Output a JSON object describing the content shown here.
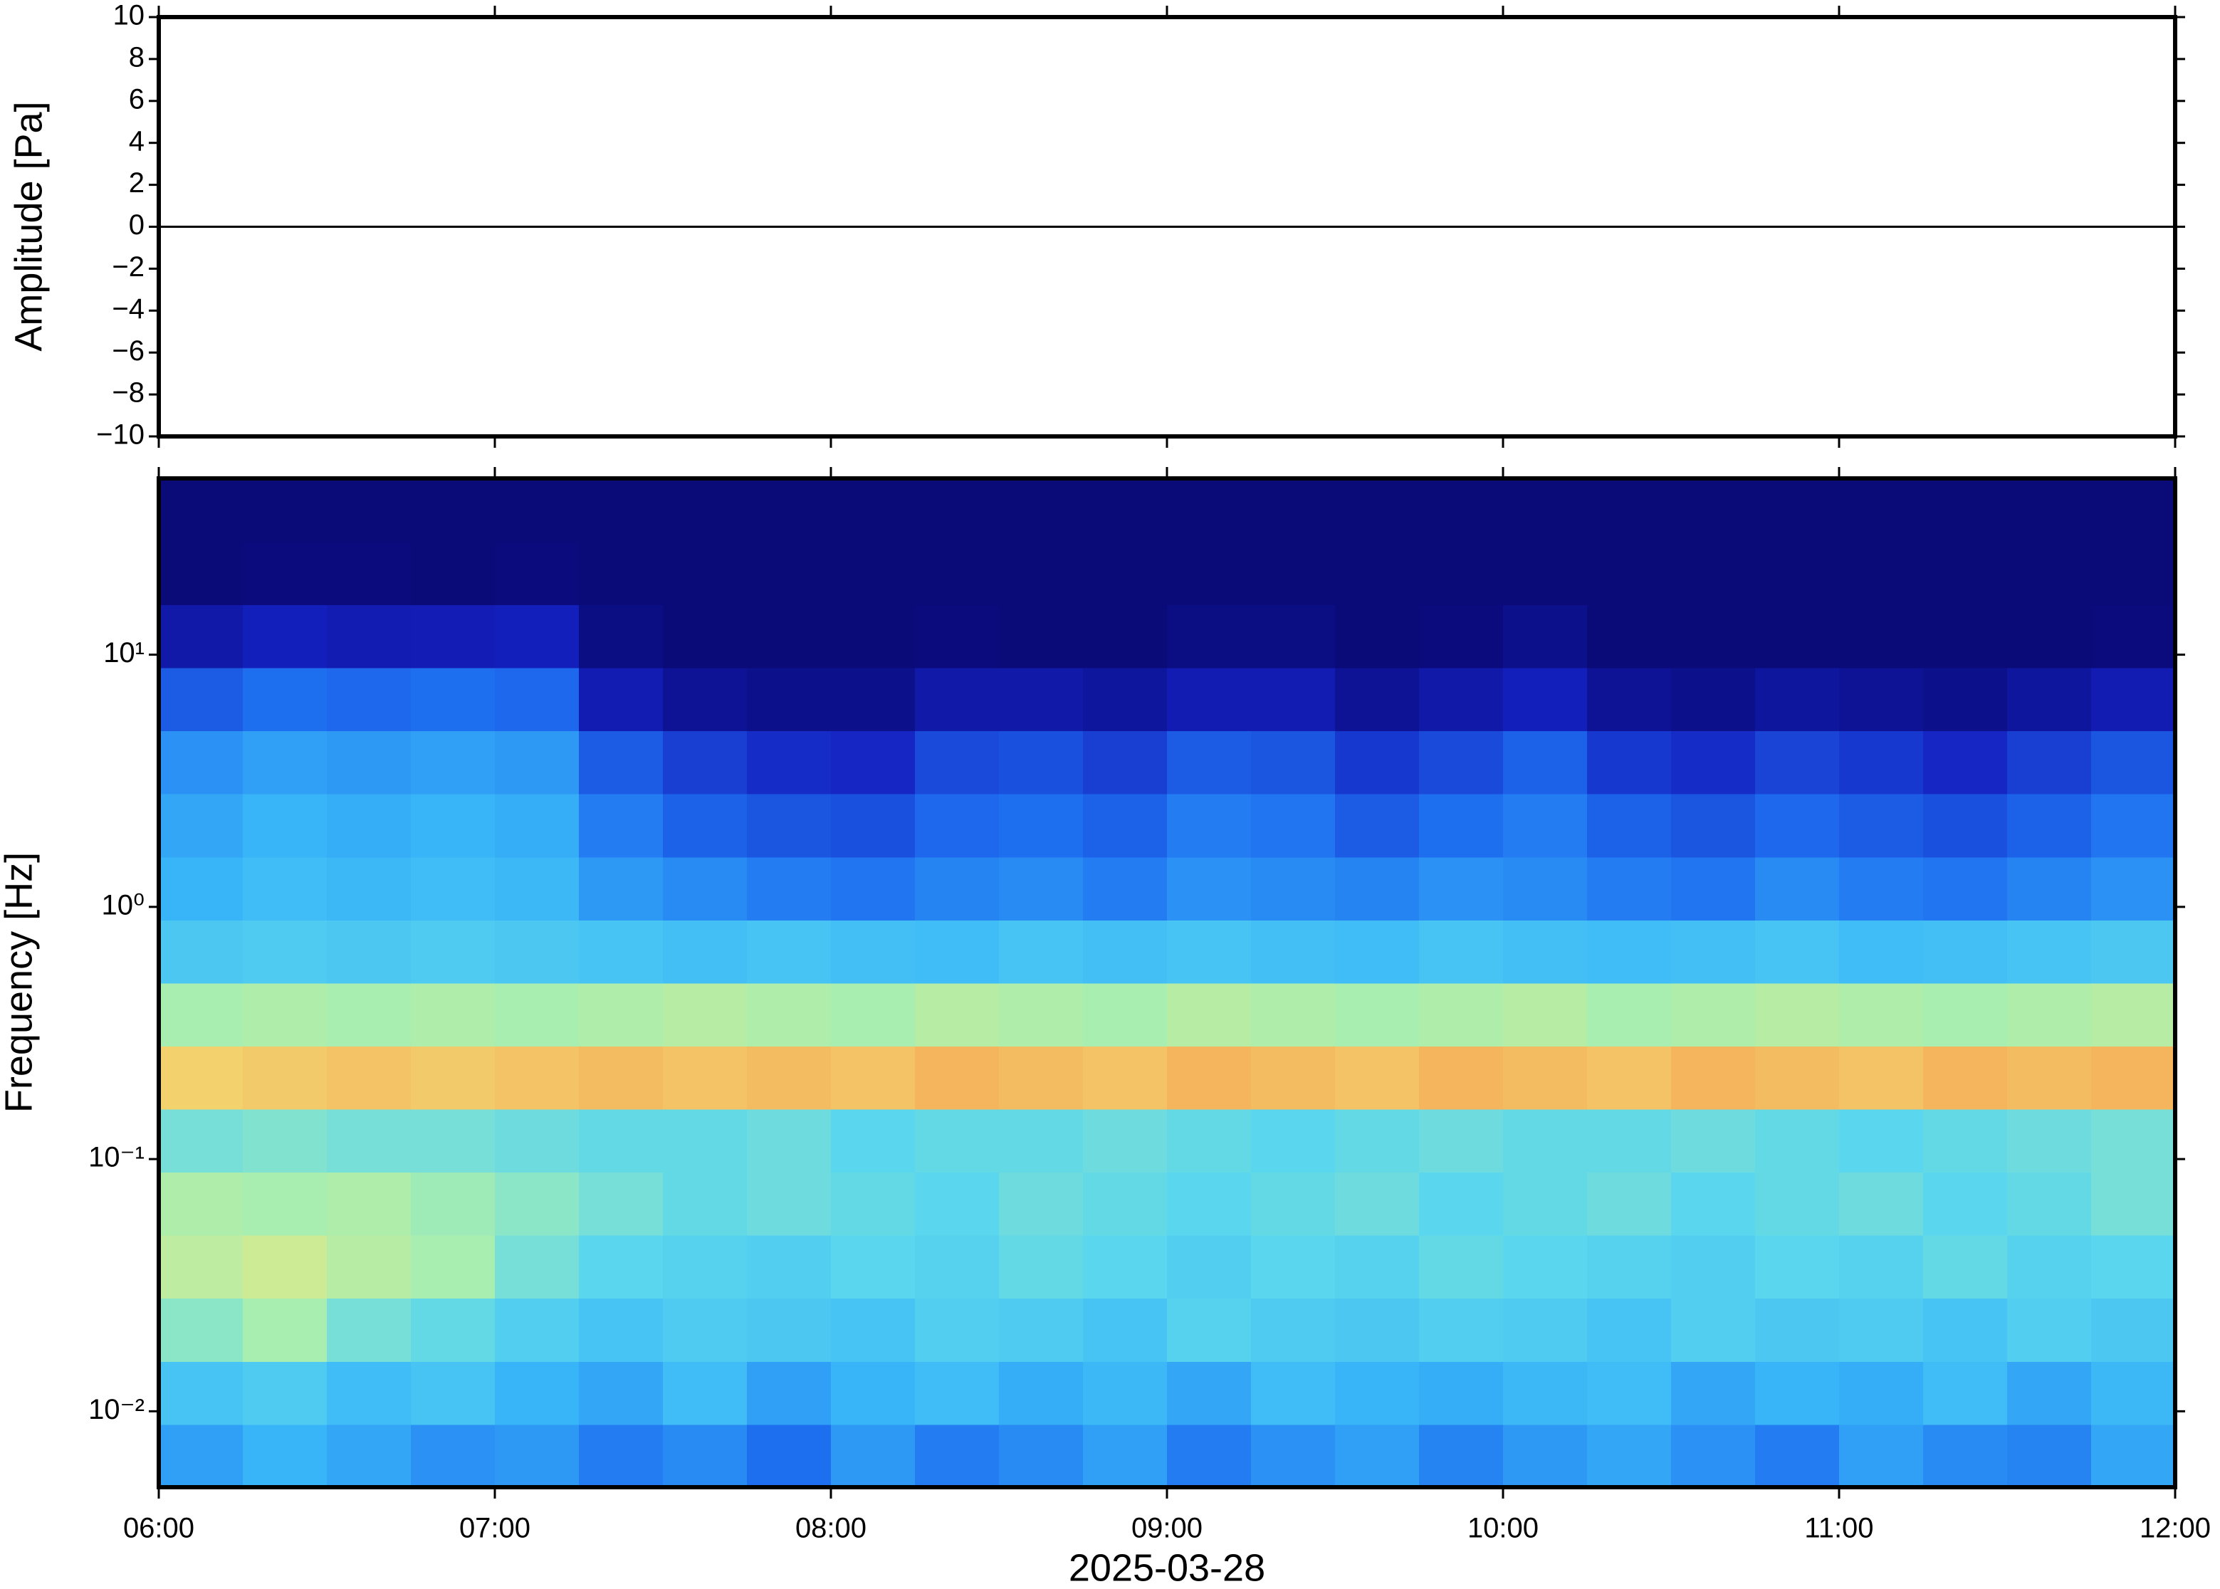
{
  "chart_data": [
    {
      "type": "line",
      "ylabel": "Amplitude [Pa]",
      "xlim": [
        6,
        12
      ],
      "ylim": [
        -10,
        10
      ],
      "yticks": [
        {
          "value": -10,
          "label": "−10"
        },
        {
          "value": -8,
          "label": "−8"
        },
        {
          "value": -6,
          "label": "−6"
        },
        {
          "value": -4,
          "label": "−4"
        },
        {
          "value": -2,
          "label": "−2"
        },
        0,
        2,
        4,
        6,
        8,
        10
      ],
      "x": [
        6,
        6.25,
        6.5,
        6.75,
        7,
        7.25,
        7.5,
        7.75,
        8,
        8.25,
        8.5,
        8.75,
        9,
        9.25,
        9.5,
        9.75,
        10,
        10.25,
        10.5,
        10.75,
        11,
        11.25,
        11.5,
        11.75,
        12
      ],
      "series": [
        {
          "color": "#000000",
          "values": [
            0,
            0,
            0,
            0,
            0,
            0,
            0,
            0,
            0,
            0,
            0,
            0,
            0,
            0,
            0,
            0,
            0,
            0,
            0,
            0,
            0,
            0,
            0,
            0,
            0
          ]
        }
      ]
    },
    {
      "type": "heatmap",
      "ylabel": "Frequency [Hz]",
      "xlabel": "2025-03-28",
      "ylog": true,
      "xlim": [
        6,
        12
      ],
      "ylim": [
        0.005,
        50
      ],
      "xticks": [
        {
          "value": 6,
          "label": "06:00"
        },
        {
          "value": 7,
          "label": "07:00"
        },
        {
          "value": 8,
          "label": "08:00"
        },
        {
          "value": 9,
          "label": "09:00"
        },
        {
          "value": 10,
          "label": "10:00"
        },
        {
          "value": 11,
          "label": "11:00"
        },
        {
          "value": 12,
          "label": "12:00"
        }
      ],
      "yticks": [
        {
          "value": 0.01,
          "label": "10⁻²"
        },
        {
          "value": 0.1,
          "label": "10⁻¹"
        },
        {
          "value": 1,
          "label": "10⁰"
        },
        {
          "value": 10,
          "label": "10¹"
        }
      ],
      "xbins": [
        6,
        6.25,
        6.5,
        6.75,
        7,
        7.25,
        7.5,
        7.75,
        8,
        8.25,
        8.5,
        8.75,
        9,
        9.25,
        9.5,
        9.75,
        10,
        10.25,
        10.5,
        10.75,
        11,
        11.25,
        11.5,
        11.75,
        12
      ],
      "ybins": [
        0.005,
        0.00889,
        0.0158,
        0.0281,
        0.05,
        0.0889,
        0.158,
        0.281,
        0.5,
        0.889,
        1.58,
        2.81,
        5,
        8.89,
        15.8,
        28.1,
        50
      ],
      "colorscale": [
        [
          0,
          "#0a0a78"
        ],
        [
          0.15,
          "#1420c0"
        ],
        [
          0.28,
          "#1e6ef0"
        ],
        [
          0.38,
          "#38b4f8"
        ],
        [
          0.47,
          "#5ad6ee"
        ],
        [
          0.55,
          "#a8eeb0"
        ],
        [
          0.65,
          "#f2e67a"
        ],
        [
          0.75,
          "#f5a050"
        ],
        [
          1,
          "#e03020"
        ]
      ],
      "values": [
        [
          0.35,
          0.38,
          0.36,
          0.33,
          0.34,
          0.3,
          0.32,
          0.28,
          0.34,
          0.3,
          0.32,
          0.35,
          0.3,
          0.33,
          0.35,
          0.31,
          0.34,
          0.36,
          0.33,
          0.3,
          0.35,
          0.32,
          0.31,
          0.36
        ],
        [
          0.42,
          0.44,
          0.4,
          0.42,
          0.38,
          0.36,
          0.4,
          0.35,
          0.38,
          0.4,
          0.37,
          0.39,
          0.36,
          0.4,
          0.38,
          0.37,
          0.39,
          0.4,
          0.36,
          0.38,
          0.37,
          0.4,
          0.36,
          0.39
        ],
        [
          0.52,
          0.55,
          0.5,
          0.48,
          0.45,
          0.42,
          0.44,
          0.43,
          0.42,
          0.45,
          0.44,
          0.42,
          0.46,
          0.44,
          0.43,
          0.45,
          0.44,
          0.42,
          0.45,
          0.43,
          0.44,
          0.42,
          0.45,
          0.43
        ],
        [
          0.58,
          0.6,
          0.57,
          0.55,
          0.5,
          0.47,
          0.46,
          0.45,
          0.47,
          0.46,
          0.48,
          0.47,
          0.45,
          0.47,
          0.46,
          0.48,
          0.47,
          0.46,
          0.45,
          0.47,
          0.46,
          0.48,
          0.46,
          0.47
        ],
        [
          0.56,
          0.55,
          0.56,
          0.54,
          0.52,
          0.5,
          0.48,
          0.49,
          0.48,
          0.47,
          0.49,
          0.48,
          0.47,
          0.48,
          0.49,
          0.47,
          0.48,
          0.49,
          0.47,
          0.48,
          0.49,
          0.47,
          0.48,
          0.5
        ],
        [
          0.5,
          0.51,
          0.5,
          0.5,
          0.49,
          0.48,
          0.48,
          0.49,
          0.47,
          0.48,
          0.48,
          0.49,
          0.48,
          0.47,
          0.48,
          0.49,
          0.48,
          0.48,
          0.49,
          0.48,
          0.47,
          0.48,
          0.49,
          0.5
        ],
        [
          0.68,
          0.69,
          0.7,
          0.69,
          0.7,
          0.71,
          0.7,
          0.71,
          0.7,
          0.72,
          0.71,
          0.7,
          0.72,
          0.71,
          0.7,
          0.72,
          0.71,
          0.7,
          0.72,
          0.71,
          0.7,
          0.72,
          0.71,
          0.72
        ],
        [
          0.55,
          0.56,
          0.55,
          0.56,
          0.55,
          0.56,
          0.57,
          0.56,
          0.55,
          0.57,
          0.56,
          0.55,
          0.57,
          0.56,
          0.55,
          0.56,
          0.57,
          0.55,
          0.56,
          0.57,
          0.56,
          0.55,
          0.56,
          0.57
        ],
        [
          0.43,
          0.44,
          0.43,
          0.44,
          0.43,
          0.42,
          0.41,
          0.42,
          0.41,
          0.4,
          0.42,
          0.41,
          0.42,
          0.41,
          0.4,
          0.42,
          0.41,
          0.4,
          0.41,
          0.42,
          0.4,
          0.41,
          0.42,
          0.43
        ],
        [
          0.38,
          0.4,
          0.39,
          0.4,
          0.39,
          0.34,
          0.32,
          0.3,
          0.29,
          0.31,
          0.32,
          0.3,
          0.33,
          0.32,
          0.31,
          0.33,
          0.32,
          0.3,
          0.29,
          0.32,
          0.3,
          0.29,
          0.31,
          0.33
        ],
        [
          0.36,
          0.38,
          0.37,
          0.38,
          0.37,
          0.3,
          0.26,
          0.24,
          0.23,
          0.27,
          0.28,
          0.26,
          0.3,
          0.29,
          0.25,
          0.28,
          0.3,
          0.26,
          0.24,
          0.27,
          0.25,
          0.23,
          0.26,
          0.29
        ],
        [
          0.33,
          0.35,
          0.34,
          0.35,
          0.34,
          0.25,
          0.2,
          0.17,
          0.16,
          0.22,
          0.23,
          0.2,
          0.25,
          0.24,
          0.19,
          0.22,
          0.26,
          0.19,
          0.17,
          0.21,
          0.19,
          0.16,
          0.2,
          0.24
        ],
        [
          0.25,
          0.28,
          0.27,
          0.28,
          0.27,
          0.12,
          0.06,
          0.04,
          0.04,
          0.1,
          0.1,
          0.08,
          0.12,
          0.12,
          0.06,
          0.1,
          0.14,
          0.06,
          0.04,
          0.08,
          0.06,
          0.04,
          0.08,
          0.12
        ],
        [
          0.1,
          0.14,
          0.12,
          0.13,
          0.14,
          0.02,
          0,
          0,
          0,
          0.01,
          0,
          0,
          0.02,
          0.02,
          0,
          0.01,
          0.04,
          0,
          0,
          0,
          0,
          0,
          0,
          0.01
        ],
        [
          0,
          0.01,
          0.01,
          0,
          0.01,
          0,
          0,
          0,
          0,
          0,
          0,
          0,
          0,
          0,
          0,
          0,
          0,
          0,
          0,
          0,
          0,
          0,
          0,
          0
        ],
        [
          0,
          0,
          0,
          0,
          0,
          0,
          0,
          0,
          0,
          0,
          0,
          0,
          0,
          0,
          0,
          0,
          0,
          0,
          0,
          0,
          0,
          0,
          0,
          0
        ]
      ]
    }
  ]
}
